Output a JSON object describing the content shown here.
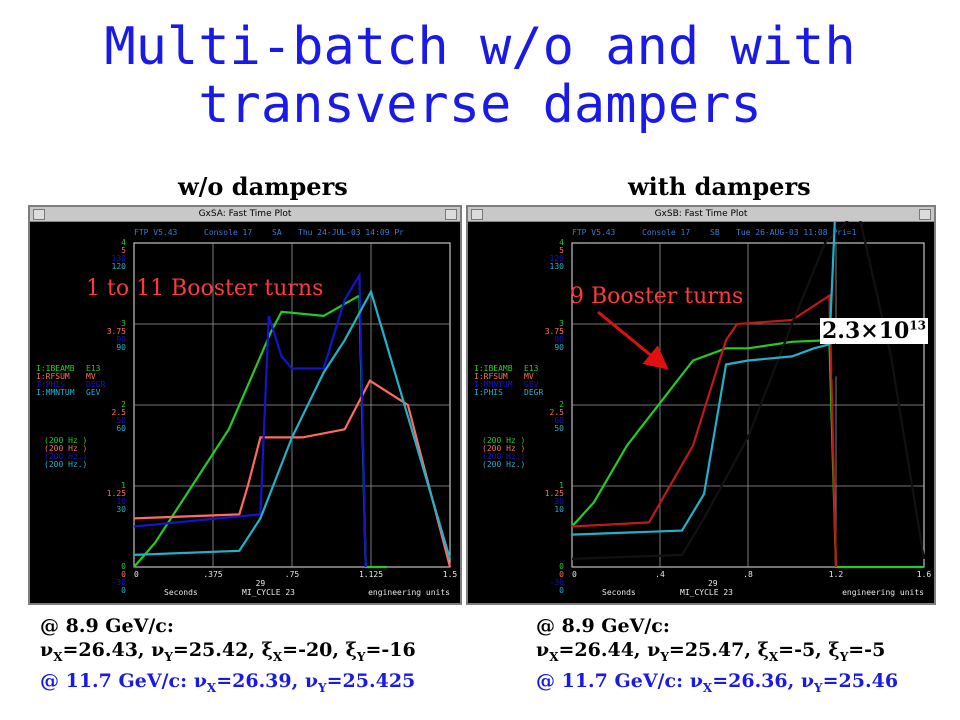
{
  "slide": {
    "title_line1": "Multi-batch w/o and with",
    "title_line2": "transverse dampers",
    "left_header": "w/o dampers",
    "right_header": "with dampers"
  },
  "left_window": {
    "title": "GxSA: Fast Time Plot",
    "status": [
      "FTP V5.43",
      "Console 17",
      "SA",
      "Thu 24-JUL-03 14:09 Pr"
    ],
    "annotation": "1 to 11 Booster turns",
    "xlabel": "Seconds",
    "xlabel_right": "engineering units",
    "cycle": "MI_CYCLE 23",
    "ytick_rows": [
      [
        "4",
        "5",
        "130",
        "120"
      ],
      [
        "3",
        "3.75",
        "90",
        "90"
      ],
      [
        "2",
        "2.5",
        "50",
        "60"
      ],
      [
        "1",
        "1.25",
        "10",
        "30"
      ],
      [
        "0",
        "0",
        "-30",
        "0"
      ]
    ],
    "xticks": [
      "0",
      ".375",
      ".75",
      "1.125",
      "1.5"
    ],
    "xmid": "29",
    "devices": [
      [
        "I:IBEAMB",
        "E13"
      ],
      [
        "I:RFSUM",
        "MV"
      ],
      [
        "I:PHIS",
        "DEGR"
      ],
      [
        "I:MMNTUM",
        "GEV"
      ]
    ],
    "rates": [
      "(200 Hz )",
      "(200 Hz )",
      "(200 Hz.)",
      "(200 Hz.)"
    ]
  },
  "right_window": {
    "title": "GxSB: Fast Time Plot",
    "status": [
      "FTP V5.43",
      "Console 17",
      "SB",
      "Tue 26-AUG-03 11:08 Pri=1"
    ],
    "annotation": "9 Booster turns",
    "intensity_base": "2.3×10",
    "intensity_exp": "13",
    "xlabel": "Seconds",
    "xlabel_right": "engineering units",
    "cycle": "MI_CYCLE 23",
    "ytick_rows": [
      [
        "4",
        "5",
        "120",
        "130"
      ],
      [
        "3",
        "3.75",
        "90",
        "90"
      ],
      [
        "2",
        "2.5",
        "60",
        "50"
      ],
      [
        "1",
        "1.25",
        "30",
        "10"
      ],
      [
        "0",
        "0",
        "-30",
        "0"
      ]
    ],
    "xticks": [
      "0",
      ".4",
      ".8",
      "1.2",
      "1.6"
    ],
    "xmid": "29",
    "devices": [
      [
        "I:IBEAMB",
        "E13"
      ],
      [
        "I:RFSUM",
        "MV"
      ],
      [
        "I:MMNTUM",
        "GEV"
      ],
      [
        "I:PHIS",
        "DEGR"
      ]
    ],
    "rates": [
      "(200 Hz )",
      "(200 Hz )",
      "(200 Hz.)",
      "(200 Hz.)"
    ]
  },
  "left_footer": {
    "line1": "@ 8.9 GeV/c:",
    "l2_nux": "=26.43, ",
    "l2_nuy": "=25.42, ",
    "l2_xix": "=-20, ",
    "l2_xiy": "=-16",
    "line3_prefix": "@ 11.7 GeV/c: ",
    "l3_nux": "=26.39, ",
    "l3_nuy": "=25.425"
  },
  "right_footer": {
    "line1": "@ 8.9 GeV/c:",
    "l2_nux": "=26.44, ",
    "l2_nuy": "=25.47, ",
    "l2_xix": "=-5, ",
    "l2_xiy": "=-5",
    "line3_prefix": "@ 11.7 GeV/c: ",
    "l3_nux": "=26.36, ",
    "l3_nuy": "=25.46"
  },
  "symbols": {
    "nu": "ν",
    "xi": "ξ",
    "X": "X",
    "Y": "Y"
  },
  "colors": {
    "title_blue": "#1a1ae6",
    "annotation_red": "#ff3a3a",
    "trace_salmon": "#ff6b5e",
    "trace_blue": "#1414c8",
    "trace_green": "#22cc22",
    "trace_cyan": "#20b2c8",
    "trace_darkred": "#c01818",
    "trace_black": "#111111",
    "grid_white": "#e8e8e8"
  },
  "chart_data": [
    {
      "type": "line",
      "title": "GxSA: Fast Time Plot",
      "xlabel": "Seconds",
      "xlim": [
        0,
        1.5
      ],
      "series": [
        {
          "name": "I:IBEAMB",
          "units": "E13",
          "x": [
            0,
            0.1,
            0.25,
            0.45,
            0.55,
            0.65,
            0.7,
            0.9,
            1.0,
            1.07,
            1.1,
            1.2
          ],
          "y": [
            0,
            0.3,
            0.9,
            1.7,
            2.3,
            2.9,
            3.15,
            3.1,
            3.25,
            3.35,
            0,
            0
          ]
        },
        {
          "name": "I:RFSUM",
          "units": "MV",
          "x": [
            0,
            0.5,
            0.54,
            0.6,
            0.8,
            1.0,
            1.12,
            1.3,
            1.5
          ],
          "y": [
            0.6,
            0.65,
            1.0,
            1.6,
            1.6,
            1.7,
            2.3,
            2.0,
            0
          ]
        },
        {
          "name": "I:PHIS",
          "units": "DEGR",
          "x": [
            0,
            0.6,
            0.64,
            0.7,
            0.75,
            0.9,
            1.0,
            1.07,
            1.1
          ],
          "y": [
            0.5,
            0.65,
            3.1,
            2.6,
            2.45,
            2.45,
            3.3,
            3.6,
            0
          ]
        },
        {
          "name": "I:MMNTUM",
          "units": "GEV",
          "x": [
            0,
            0.5,
            0.6,
            0.75,
            0.9,
            1.0,
            1.125,
            1.5
          ],
          "y": [
            0.15,
            0.2,
            0.6,
            1.6,
            2.4,
            2.8,
            3.4,
            0.1
          ]
        }
      ]
    },
    {
      "type": "line",
      "title": "GxSB: Fast Time Plot",
      "xlabel": "Seconds",
      "xlim": [
        0,
        1.6
      ],
      "series": [
        {
          "name": "I:IBEAMB",
          "units": "E13",
          "x": [
            0,
            0.1,
            0.25,
            0.45,
            0.55,
            0.7,
            0.8,
            1.0,
            1.17,
            1.2,
            1.6
          ],
          "y": [
            0.5,
            0.8,
            1.5,
            2.2,
            2.55,
            2.7,
            2.7,
            2.78,
            2.8,
            0,
            0
          ]
        },
        {
          "name": "I:RFSUM",
          "units": "MV",
          "x": [
            0,
            0.35,
            0.55,
            0.7,
            0.75,
            1.0,
            1.17,
            1.2
          ],
          "y": [
            0.5,
            0.55,
            1.5,
            2.8,
            3.0,
            3.05,
            3.35,
            0
          ]
        },
        {
          "name": "I:MMNTUM",
          "units": "GEV",
          "x": [
            0,
            0.5,
            0.6,
            0.8,
            1.0,
            1.15,
            1.3,
            1.45,
            1.6
          ],
          "y": [
            0.1,
            0.15,
            0.6,
            1.6,
            3.0,
            4.0,
            4.4,
            2.6,
            0.1
          ]
        },
        {
          "name": "I:PHIS",
          "units": "DEGR",
          "x": [
            0,
            0.5,
            0.6,
            0.7,
            0.8,
            1.0,
            1.1,
            1.17,
            1.2
          ],
          "y": [
            0.4,
            0.45,
            0.9,
            2.5,
            2.55,
            2.6,
            2.7,
            2.75,
            4.6
          ]
        }
      ]
    }
  ]
}
